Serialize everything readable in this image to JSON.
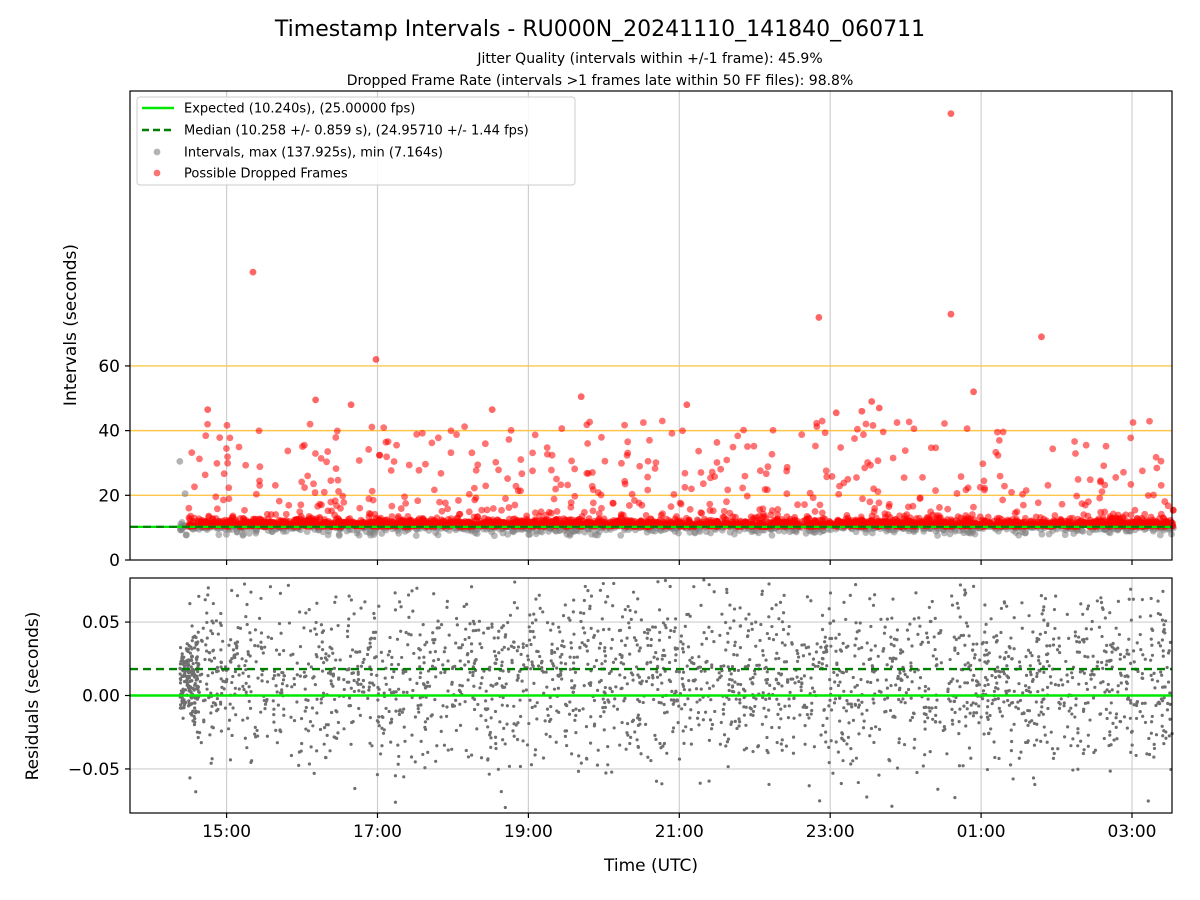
{
  "chart_data": {
    "type": "scatter",
    "title": "Timestamp Intervals - RU000N_20241110_141840_060711",
    "subtitle_lines": [
      "Jitter Quality (intervals within +/-1 frame): 45.9%",
      "Dropped Frame Rate (intervals >1 frames late within 50 FF files): 98.8%"
    ],
    "xlabel": "Time (UTC)",
    "x_ticks": [
      "15:00",
      "17:00",
      "19:00",
      "21:00",
      "23:00",
      "01:00",
      "03:00"
    ],
    "x_tick_hours": [
      15,
      17,
      19,
      21,
      23,
      25,
      27
    ],
    "x_range_hours": [
      13.72,
      27.53
    ],
    "grid": true,
    "legend_placement": "upper-left",
    "colors": {
      "expected": "#00e800",
      "median": "#007f00",
      "intervals": "#808080",
      "dropped": "#ff0000",
      "threshold": "#ffc64a",
      "grid": "#cfcfcf"
    },
    "top_panel": {
      "ylabel": "Intervals (seconds)",
      "ylim": [
        0,
        145
      ],
      "y_ticks": [
        "0",
        "20",
        "40",
        "60"
      ],
      "y_tick_values": [
        0,
        20,
        40,
        60
      ],
      "threshold_lines": [
        20,
        40,
        60
      ],
      "expected_interval": 10.24,
      "median_interval": 10.258,
      "legend": [
        "Expected (10.240s), (25.00000 fps)",
        "Median (10.258 +/- 0.859 s), (24.95710 +/- 1.44 fps)",
        "Intervals, max (137.925s), min (7.164s)",
        "Possible Dropped Frames"
      ],
      "dropped_outliers": [
        {
          "x": 15.35,
          "y": 89.0
        },
        {
          "x": 16.98,
          "y": 62.0
        },
        {
          "x": 22.85,
          "y": 75.0
        },
        {
          "x": 24.6,
          "y": 138.0
        },
        {
          "x": 24.6,
          "y": 76.0
        },
        {
          "x": 24.9,
          "y": 52.0
        },
        {
          "x": 25.8,
          "y": 69.0
        },
        {
          "x": 19.7,
          "y": 50.5
        },
        {
          "x": 16.18,
          "y": 49.5
        },
        {
          "x": 23.08,
          "y": 45.5
        },
        {
          "x": 23.42,
          "y": 46.0
        },
        {
          "x": 23.55,
          "y": 49.0
        },
        {
          "x": 23.65,
          "y": 47.0
        },
        {
          "x": 21.1,
          "y": 48.0
        },
        {
          "x": 18.52,
          "y": 46.5
        },
        {
          "x": 14.75,
          "y": 46.5
        },
        {
          "x": 16.65,
          "y": 48.0
        }
      ],
      "gray_outliers": [
        {
          "x": 14.38,
          "y": 30.5
        },
        {
          "x": 14.45,
          "y": 20.5
        }
      ]
    },
    "bottom_panel": {
      "ylabel": "Residuals (seconds)",
      "ylim": [
        -0.08,
        0.08
      ],
      "y_ticks": [
        "0.05",
        "0.00",
        "−0.05"
      ],
      "y_tick_values": [
        0.05,
        0.0,
        -0.05
      ],
      "expected_residual": 0.0,
      "median_residual": 0.018
    }
  }
}
